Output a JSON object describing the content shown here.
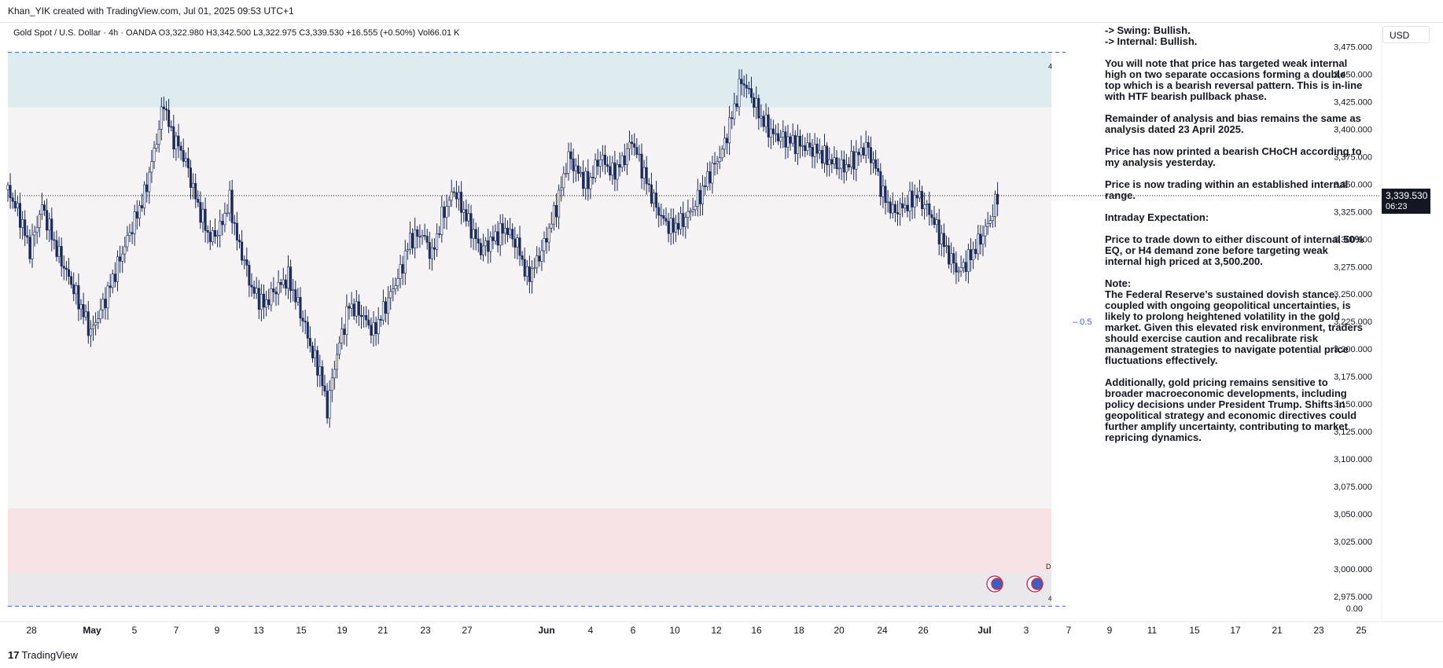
{
  "header": {
    "attribution": "Khan_YIK created with TradingView.com, Jul 01, 2025 09:53 UTC+1"
  },
  "legend": {
    "symbol": "Gold Spot / U.S. Dollar · 4h · OANDA",
    "ohlc": "O3,322.980  H3,342.500  L3,322.975  C3,339.530  +16.555 (+0.50%)  Vol66.01 K"
  },
  "currency_button": "USD",
  "last_price": {
    "value": "3,339.530",
    "countdown": "06:23"
  },
  "zone_labels": {
    "upper": "4",
    "lower_d": "D",
    "lower_4": "4",
    "eq": "0.5"
  },
  "fib_prefix": "–",
  "notes": {
    "bias_swing": "-> Swing:  Bullish.",
    "bias_internal": "-> Internal:  Bullish.",
    "p1": "You will note that price has targeted weak internal high on two separate occasions forming a double top which is a bearish reversal pattern. This is in-line with HTF bearish pullback phase.",
    "p2": "Remainder of analysis and bias remains the same as analysis dated 23 April 2025.",
    "p3": "Price has now printed a bearish CHoCH according to my analysis yesterday.",
    "p4": "Price is now trading within an established internal range.",
    "p5": "Intraday Expectation:",
    "p6": "Price to trade down to either discount of internal 50% EQ, or H4 demand zone before targeting weak internal high priced at 3,500.200.",
    "p7_title": "Note:",
    "p7": "The Federal Reserve’s sustained dovish stance, coupled with ongoing geopolitical uncertainties, is likely to prolong heightened volatility in the gold market. Given this elevated risk environment, traders should exercise caution and recalibrate risk management strategies to navigate potential price fluctuations effectively.",
    "p8": "Additionally, gold pricing remains sensitive to broader macroeconomic developments, including policy decisions under President Trump. Shifts in geopolitical strategy and economic directives could further amplify uncertainty, contributing to market repricing dynamics."
  },
  "chart_data": {
    "type": "candlestick",
    "y_axis": {
      "ticks": [
        "3,475.000",
        "3,450.000",
        "3,425.000",
        "3,400.000",
        "3,375.000",
        "3,350.000",
        "3,325.000",
        "3,300.000",
        "3,275.000",
        "3,250.000",
        "3,225.000",
        "3,200.000",
        "3,175.000",
        "3,150.000",
        "3,125.000",
        "3,100.000",
        "3,075.000",
        "3,050.000",
        "3,025.000",
        "3,000.000",
        "2,975.000"
      ],
      "extra_tick": "0.00",
      "ylim": [
        2962,
        3484
      ]
    },
    "x_axis": {
      "ticks": [
        "28",
        "May",
        "5",
        "7",
        "9",
        "13",
        "15",
        "19",
        "21",
        "23",
        "27",
        "Jun",
        "4",
        "6",
        "10",
        "12",
        "16",
        "18",
        "20",
        "24",
        "26",
        "Jul",
        "3",
        "7",
        "9",
        "11",
        "15",
        "17",
        "21",
        "23",
        "25"
      ],
      "bold": [
        "May",
        "Jun",
        "Jul"
      ]
    },
    "zones": [
      {
        "name": "upper-zone",
        "top": 3470,
        "bottom": 3420,
        "color": "#dcecef"
      },
      {
        "name": "mid-range",
        "top": 3420,
        "bottom": 3055,
        "color": "#f6f3f4"
      },
      {
        "name": "demand-zone",
        "top": 3055,
        "bottom": 2996,
        "color": "#f7e3e4"
      },
      {
        "name": "lower-zone",
        "top": 2996,
        "bottom": 2966,
        "color": "#ebe8ec"
      }
    ],
    "levels": {
      "dashed_top": 3470,
      "dashed_bottom": 2966,
      "last": 3339.53
    },
    "close_path": [
      [
        0,
        3345
      ],
      [
        10,
        3320
      ],
      [
        18,
        3290
      ],
      [
        28,
        3330
      ],
      [
        40,
        3290
      ],
      [
        52,
        3260
      ],
      [
        60,
        3238
      ],
      [
        68,
        3215
      ],
      [
        78,
        3240
      ],
      [
        88,
        3270
      ],
      [
        98,
        3300
      ],
      [
        112,
        3340
      ],
      [
        122,
        3390
      ],
      [
        128,
        3425
      ],
      [
        134,
        3395
      ],
      [
        140,
        3385
      ],
      [
        146,
        3370
      ],
      [
        156,
        3330
      ],
      [
        166,
        3300
      ],
      [
        174,
        3310
      ],
      [
        182,
        3335
      ],
      [
        188,
        3300
      ],
      [
        194,
        3280
      ],
      [
        200,
        3255
      ],
      [
        210,
        3240
      ],
      [
        220,
        3255
      ],
      [
        230,
        3265
      ],
      [
        238,
        3240
      ],
      [
        244,
        3220
      ],
      [
        250,
        3195
      ],
      [
        256,
        3180
      ],
      [
        262,
        3145
      ],
      [
        268,
        3185
      ],
      [
        272,
        3205
      ],
      [
        280,
        3240
      ],
      [
        290,
        3232
      ],
      [
        300,
        3215
      ],
      [
        312,
        3245
      ],
      [
        322,
        3270
      ],
      [
        330,
        3300
      ],
      [
        340,
        3305
      ],
      [
        348,
        3285
      ],
      [
        356,
        3320
      ],
      [
        366,
        3345
      ],
      [
        376,
        3320
      ],
      [
        388,
        3290
      ],
      [
        398,
        3300
      ],
      [
        408,
        3310
      ],
      [
        418,
        3295
      ],
      [
        426,
        3265
      ],
      [
        432,
        3275
      ],
      [
        440,
        3295
      ],
      [
        450,
        3330
      ],
      [
        460,
        3375
      ],
      [
        468,
        3360
      ],
      [
        476,
        3350
      ],
      [
        486,
        3375
      ],
      [
        496,
        3360
      ],
      [
        504,
        3370
      ],
      [
        512,
        3390
      ],
      [
        520,
        3365
      ],
      [
        528,
        3340
      ],
      [
        536,
        3320
      ],
      [
        544,
        3310
      ],
      [
        552,
        3315
      ],
      [
        560,
        3325
      ],
      [
        568,
        3340
      ],
      [
        576,
        3360
      ],
      [
        586,
        3380
      ],
      [
        596,
        3420
      ],
      [
        602,
        3445
      ],
      [
        610,
        3430
      ],
      [
        618,
        3410
      ],
      [
        628,
        3395
      ],
      [
        640,
        3390
      ],
      [
        652,
        3385
      ],
      [
        664,
        3380
      ],
      [
        676,
        3370
      ],
      [
        686,
        3365
      ],
      [
        696,
        3375
      ],
      [
        704,
        3385
      ],
      [
        712,
        3365
      ],
      [
        718,
        3340
      ],
      [
        726,
        3325
      ],
      [
        736,
        3330
      ],
      [
        746,
        3340
      ],
      [
        756,
        3325
      ],
      [
        764,
        3305
      ],
      [
        772,
        3285
      ],
      [
        780,
        3270
      ],
      [
        790,
        3285
      ],
      [
        798,
        3300
      ],
      [
        806,
        3318
      ],
      [
        812,
        3339
      ]
    ],
    "zone_labels_at": {
      "upper": 3455,
      "d": 3000,
      "4": 2971,
      "eq": 3225
    },
    "events": [
      {
        "name": "us-flag-1"
      },
      {
        "name": "us-flag-2"
      }
    ]
  },
  "footer": {
    "logo_mark": "17",
    "brand": "TradingView"
  }
}
